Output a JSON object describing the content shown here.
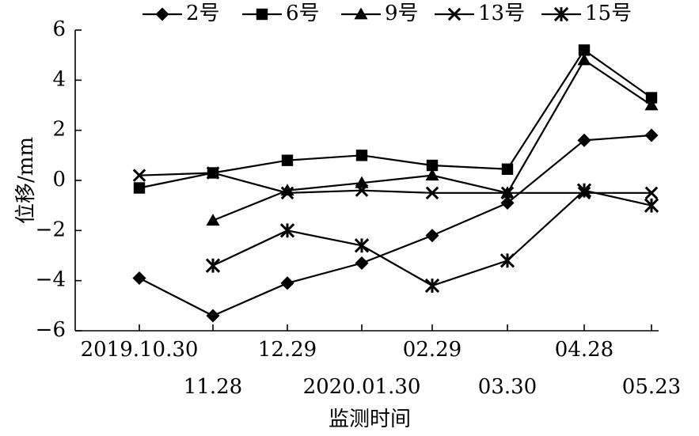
{
  "chart_data": {
    "type": "line",
    "xlabel": "监测时间",
    "ylabel": "位移/mm",
    "ylim": [
      -6,
      6
    ],
    "yticks": [
      -6,
      -4,
      -2,
      0,
      2,
      4,
      6
    ],
    "ytick_labels": [
      "−6",
      "−4",
      "−2",
      "0",
      "2",
      "4",
      "6"
    ],
    "categories": [
      "2019.10.30",
      "11.28",
      "12.29",
      "2020.01.30",
      "02.29",
      "03.30",
      "04.28",
      "05.23"
    ],
    "grid": false,
    "legend_position": "top",
    "series": [
      {
        "name": "2号",
        "marker": "diamond",
        "values": [
          -3.9,
          -5.4,
          -4.1,
          -3.3,
          -2.2,
          -0.9,
          1.6,
          1.8
        ]
      },
      {
        "name": "6号",
        "marker": "square",
        "values": [
          -0.3,
          0.3,
          0.8,
          1.0,
          0.6,
          0.45,
          5.2,
          3.3
        ]
      },
      {
        "name": "9号",
        "marker": "triangle",
        "values": [
          null,
          -1.6,
          -0.4,
          -0.1,
          0.2,
          -0.5,
          4.8,
          3.0
        ]
      },
      {
        "name": "13号",
        "marker": "x",
        "values": [
          0.2,
          0.3,
          -0.5,
          -0.4,
          -0.5,
          -0.5,
          -0.5,
          -0.5
        ]
      },
      {
        "name": "15号",
        "marker": "asterisk",
        "values": [
          null,
          -3.4,
          -2.0,
          -2.6,
          -4.2,
          -3.2,
          -0.4,
          -1.0
        ]
      }
    ]
  }
}
